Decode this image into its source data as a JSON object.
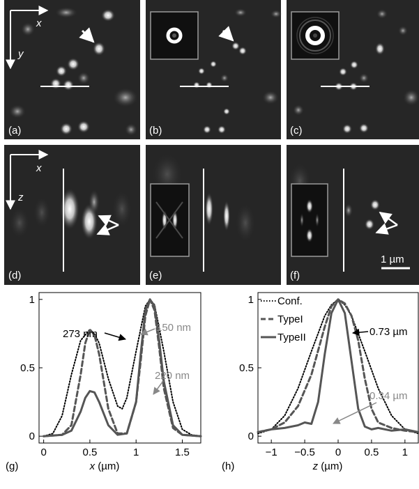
{
  "panels": {
    "top": [
      {
        "label": "(a)",
        "axis_x": "x",
        "axis_y": "y"
      },
      {
        "label": "(b)"
      },
      {
        "label": "(c)"
      }
    ],
    "middle": [
      {
        "label": "(d)",
        "axis_x": "x",
        "axis_y": "z"
      },
      {
        "label": "(e)"
      },
      {
        "label": "(f)",
        "scale_bar": "1 µm"
      }
    ]
  },
  "chart_data": [
    {
      "type": "line",
      "panel_label": "(g)",
      "xlabel_var": "x",
      "xlabel_unit": "(µm)",
      "xlim": [
        -0.05,
        1.7
      ],
      "ylim": [
        -0.05,
        1.05
      ],
      "xticks": [
        "0",
        "0.5",
        "1",
        "1.5"
      ],
      "yticks": [
        "0",
        "0.5",
        "1"
      ],
      "series": [
        {
          "style": "dotted",
          "color": "#000000",
          "x": [
            0.0,
            0.1,
            0.2,
            0.3,
            0.4,
            0.5,
            0.55,
            0.6,
            0.7,
            0.8,
            0.85,
            0.9,
            1.0,
            1.1,
            1.15,
            1.2,
            1.3,
            1.4,
            1.5,
            1.6,
            1.7
          ],
          "y": [
            0.0,
            0.02,
            0.15,
            0.45,
            0.7,
            0.78,
            0.75,
            0.68,
            0.42,
            0.22,
            0.2,
            0.28,
            0.62,
            0.95,
            1.0,
            0.96,
            0.62,
            0.25,
            0.05,
            0.01,
            0.0
          ]
        },
        {
          "style": "dashed",
          "color": "#555555",
          "x": [
            0.0,
            0.2,
            0.3,
            0.4,
            0.45,
            0.5,
            0.55,
            0.6,
            0.7,
            0.8,
            0.9,
            1.0,
            1.05,
            1.1,
            1.15,
            1.2,
            1.25,
            1.3,
            1.4,
            1.5,
            1.7
          ],
          "y": [
            0.0,
            0.01,
            0.08,
            0.45,
            0.68,
            0.78,
            0.74,
            0.6,
            0.2,
            0.02,
            0.02,
            0.25,
            0.55,
            0.88,
            1.0,
            0.92,
            0.65,
            0.35,
            0.06,
            0.01,
            0.0
          ]
        },
        {
          "style": "solid",
          "color": "#555555",
          "x": [
            0.0,
            0.2,
            0.3,
            0.4,
            0.45,
            0.5,
            0.55,
            0.6,
            0.7,
            0.8,
            0.9,
            1.0,
            1.05,
            1.1,
            1.15,
            1.2,
            1.25,
            1.3,
            1.4,
            1.5,
            1.7
          ],
          "y": [
            0.0,
            0.01,
            0.04,
            0.18,
            0.28,
            0.33,
            0.32,
            0.25,
            0.08,
            0.01,
            0.02,
            0.25,
            0.6,
            0.92,
            1.0,
            0.95,
            0.7,
            0.4,
            0.08,
            0.01,
            0.0
          ]
        }
      ],
      "annotations": [
        {
          "text": "273 nm",
          "color": "#000000"
        },
        {
          "text": "150 nm",
          "color": "#888888"
        },
        {
          "text": "220 nm",
          "color": "#888888"
        }
      ]
    },
    {
      "type": "line",
      "panel_label": "(h)",
      "xlabel_var": "z",
      "xlabel_unit": "(µm)",
      "xlim": [
        -1.2,
        1.2
      ],
      "ylim": [
        -0.05,
        1.05
      ],
      "xticks": [
        "−1",
        "−0.5",
        "0",
        "0.5",
        "1"
      ],
      "yticks": [
        "0",
        "0.5",
        "1"
      ],
      "legend": [
        "Conf.",
        "TypeI",
        "TypeII"
      ],
      "series": [
        {
          "name": "Conf.",
          "style": "dotted",
          "color": "#000000",
          "x": [
            -1.2,
            -1.0,
            -0.8,
            -0.6,
            -0.4,
            -0.2,
            -0.1,
            0.0,
            0.1,
            0.2,
            0.4,
            0.6,
            0.8,
            1.0,
            1.2
          ],
          "y": [
            0.02,
            0.05,
            0.15,
            0.35,
            0.62,
            0.88,
            0.96,
            1.0,
            0.96,
            0.88,
            0.62,
            0.35,
            0.15,
            0.05,
            0.02
          ]
        },
        {
          "name": "TypeI",
          "style": "dashed",
          "color": "#555555",
          "x": [
            -1.2,
            -1.0,
            -0.8,
            -0.6,
            -0.4,
            -0.2,
            -0.1,
            0.0,
            0.1,
            0.2,
            0.3,
            0.4,
            0.5,
            0.6,
            0.8,
            1.0,
            1.2
          ],
          "y": [
            0.03,
            0.05,
            0.1,
            0.22,
            0.45,
            0.8,
            0.95,
            1.0,
            0.97,
            0.88,
            0.7,
            0.42,
            0.2,
            0.1,
            0.06,
            0.04,
            0.03
          ]
        },
        {
          "name": "TypeII",
          "style": "solid",
          "color": "#555555",
          "x": [
            -1.2,
            -1.0,
            -0.8,
            -0.6,
            -0.5,
            -0.4,
            -0.3,
            -0.2,
            -0.1,
            0.0,
            0.1,
            0.2,
            0.3,
            0.4,
            0.5,
            0.6,
            0.8,
            1.0,
            1.2
          ],
          "y": [
            0.03,
            0.05,
            0.06,
            0.08,
            0.1,
            0.09,
            0.25,
            0.6,
            0.9,
            1.0,
            0.9,
            0.55,
            0.2,
            0.07,
            0.05,
            0.06,
            0.04,
            0.05,
            0.03
          ]
        }
      ],
      "annotations": [
        {
          "text": "0.73 µm",
          "color": "#000000"
        },
        {
          "text": "0.34 µm",
          "color": "#888888"
        }
      ]
    }
  ]
}
